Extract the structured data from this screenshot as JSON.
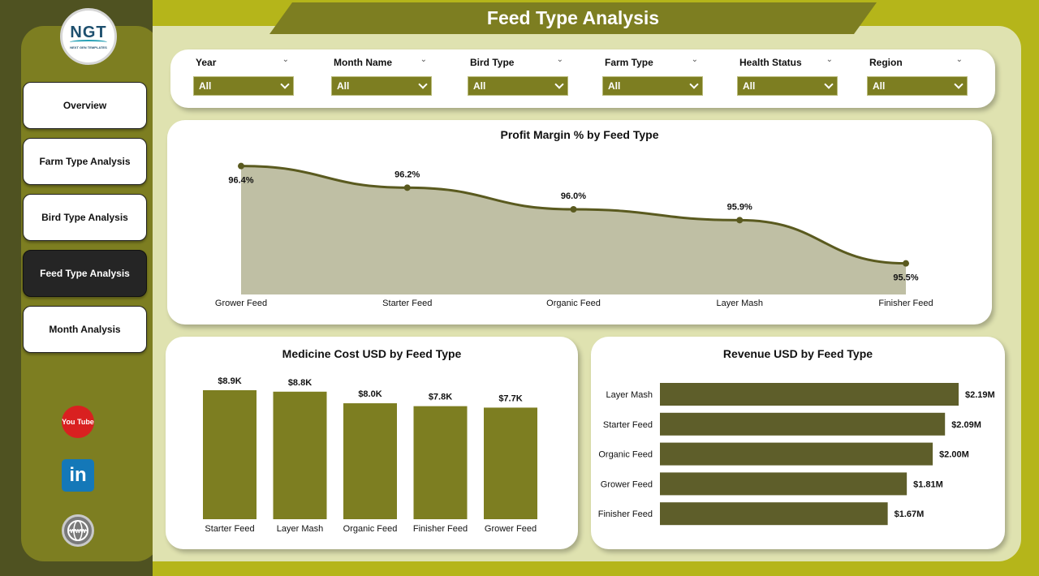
{
  "header": {
    "title": "Feed Type Analysis"
  },
  "logo": {
    "text": "NGT",
    "subtitle": "NEXT GEN TEMPLATES"
  },
  "nav": {
    "items": [
      {
        "label": "Overview",
        "active": false
      },
      {
        "label": "Farm Type Analysis",
        "active": false
      },
      {
        "label": "Bird Type Analysis",
        "active": false
      },
      {
        "label": "Feed Type Analysis",
        "active": true
      },
      {
        "label": "Month Analysis",
        "active": false
      }
    ]
  },
  "social": {
    "youtube_text": "You Tube",
    "linkedin_text": "in",
    "web_text": "WWW"
  },
  "filters": [
    {
      "label": "Year",
      "value": "All"
    },
    {
      "label": "Month Name",
      "value": "All"
    },
    {
      "label": "Bird Type",
      "value": "All"
    },
    {
      "label": "Farm Type",
      "value": "All"
    },
    {
      "label": "Health Status",
      "value": "All"
    },
    {
      "label": "Region",
      "value": "All"
    }
  ],
  "colors": {
    "accent": "#7d7e21",
    "dark": "#5e5e2a",
    "area_fill": "#bfbfa4",
    "line": "#5a5a1f"
  },
  "chart_data": [
    {
      "type": "area",
      "title": "Profit Margin % by Feed Type",
      "categories": [
        "Grower Feed",
        "Starter Feed",
        "Organic Feed",
        "Layer Mash",
        "Finisher Feed"
      ],
      "values": [
        96.4,
        96.2,
        96.0,
        95.9,
        95.5
      ],
      "labels": [
        "96.4%",
        "96.2%",
        "96.0%",
        "95.9%",
        "95.5%"
      ],
      "ylim": [
        95.4,
        96.45
      ]
    },
    {
      "type": "bar",
      "title": "Medicine Cost USD by Feed Type",
      "categories": [
        "Starter Feed",
        "Layer Mash",
        "Organic Feed",
        "Finisher Feed",
        "Grower Feed"
      ],
      "values": [
        8900,
        8800,
        8000,
        7800,
        7700
      ],
      "labels": [
        "$8.9K",
        "$8.8K",
        "$8.0K",
        "$7.8K",
        "$7.7K"
      ],
      "ylim": [
        0,
        8900
      ]
    },
    {
      "type": "bar",
      "orientation": "horizontal",
      "title": "Revenue USD by Feed Type",
      "categories": [
        "Layer Mash",
        "Starter Feed",
        "Organic Feed",
        "Grower Feed",
        "Finisher Feed"
      ],
      "values": [
        2.19,
        2.09,
        2.0,
        1.81,
        1.67
      ],
      "labels": [
        "$2.19M",
        "$2.09M",
        "$2.00M",
        "$1.81M",
        "$1.67M"
      ],
      "unit": "M",
      "xlim": [
        0,
        2.19
      ]
    }
  ]
}
